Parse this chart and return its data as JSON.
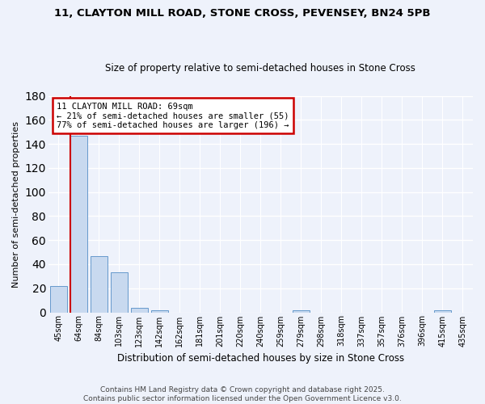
{
  "title_line1": "11, CLAYTON MILL ROAD, STONE CROSS, PEVENSEY, BN24 5PB",
  "title_line2": "Size of property relative to semi-detached houses in Stone Cross",
  "xlabel": "Distribution of semi-detached houses by size in Stone Cross",
  "ylabel": "Number of semi-detached properties",
  "bins": [
    "45sqm",
    "64sqm",
    "84sqm",
    "103sqm",
    "123sqm",
    "142sqm",
    "162sqm",
    "181sqm",
    "201sqm",
    "220sqm",
    "240sqm",
    "259sqm",
    "279sqm",
    "298sqm",
    "318sqm",
    "337sqm",
    "357sqm",
    "376sqm",
    "396sqm",
    "415sqm",
    "435sqm"
  ],
  "values": [
    22,
    147,
    47,
    33,
    4,
    2,
    0,
    0,
    0,
    0,
    0,
    0,
    2,
    0,
    0,
    0,
    0,
    0,
    0,
    2,
    0
  ],
  "bar_color": "#c8d9ef",
  "bar_edge_color": "#6699cc",
  "property_bin_index": 1,
  "property_label": "11 CLAYTON MILL ROAD: 69sqm",
  "smaller_pct": "21%",
  "smaller_count": 55,
  "larger_pct": "77%",
  "larger_count": 196,
  "annotation_box_color": "#ffffff",
  "annotation_box_edge": "#cc0000",
  "vline_color": "#cc0000",
  "ylim": [
    0,
    180
  ],
  "yticks": [
    0,
    20,
    40,
    60,
    80,
    100,
    120,
    140,
    160,
    180
  ],
  "footer_line1": "Contains HM Land Registry data © Crown copyright and database right 2025.",
  "footer_line2": "Contains public sector information licensed under the Open Government Licence v3.0.",
  "bg_color": "#eef2fb",
  "grid_color": "#c8d0e8",
  "title_fontsize": 9.5,
  "subtitle_fontsize": 8.5,
  "ylabel_fontsize": 8,
  "xlabel_fontsize": 8.5,
  "tick_fontsize": 7,
  "annot_fontsize": 7.5,
  "footer_fontsize": 6.5
}
